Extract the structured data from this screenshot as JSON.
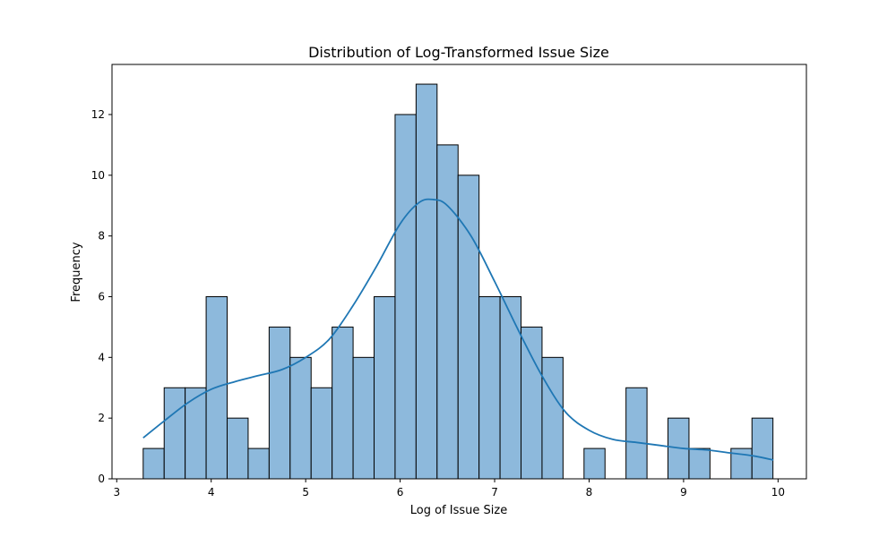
{
  "chart_data": {
    "type": "bar",
    "title": "Distribution of Log-Transformed Issue Size",
    "xlabel": "Log of Issue Size",
    "ylabel": "Frequency",
    "xlim": [
      2.95,
      10.3
    ],
    "ylim": [
      0,
      13.65
    ],
    "xticks": [
      3,
      4,
      5,
      6,
      7,
      8,
      9,
      10
    ],
    "yticks": [
      0,
      2,
      4,
      6,
      8,
      10,
      12
    ],
    "grid": false,
    "bins": {
      "start": 3.28,
      "width": 0.2222,
      "counts": [
        1,
        3,
        3,
        6,
        2,
        1,
        5,
        4,
        3,
        5,
        4,
        6,
        12,
        13,
        11,
        10,
        6,
        6,
        5,
        4,
        0,
        1,
        0,
        3,
        0,
        2,
        1,
        0,
        1,
        2
      ]
    },
    "kde": {
      "x": [
        3.28,
        3.5,
        3.75,
        4.0,
        4.25,
        4.5,
        4.75,
        5.0,
        5.25,
        5.5,
        5.75,
        6.0,
        6.2,
        6.35,
        6.5,
        6.75,
        7.0,
        7.25,
        7.5,
        7.75,
        8.0,
        8.25,
        8.5,
        8.75,
        9.0,
        9.25,
        9.5,
        9.75,
        9.95
      ],
      "y": [
        1.35,
        1.9,
        2.5,
        2.95,
        3.2,
        3.4,
        3.6,
        4.0,
        4.6,
        5.7,
        7.0,
        8.4,
        9.1,
        9.2,
        9.0,
        8.0,
        6.5,
        4.9,
        3.4,
        2.2,
        1.6,
        1.3,
        1.2,
        1.1,
        1.0,
        0.95,
        0.85,
        0.75,
        0.62
      ]
    },
    "colors": {
      "bar_fill": "#8db9dc",
      "bar_edge": "#000000",
      "kde_line": "#1f77b4"
    }
  }
}
